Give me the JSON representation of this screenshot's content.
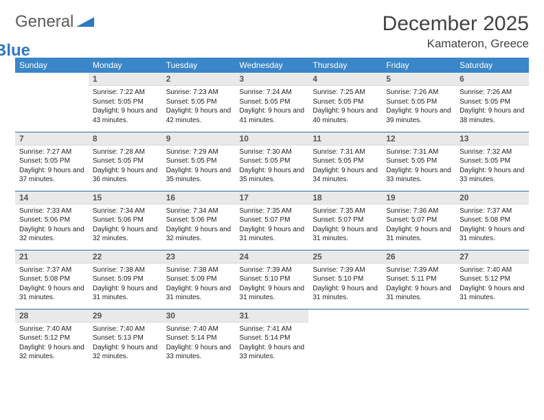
{
  "logo": {
    "text1": "General",
    "text2": "Blue"
  },
  "title": "December 2025",
  "location": "Kamateron, Greece",
  "colors": {
    "header_bg": "#3a86c8",
    "header_text": "#ffffff",
    "row_divider": "#2f6aa5",
    "daybar_bg": "#e9e9e9",
    "logo_accent": "#2f78c2"
  },
  "weekdays": [
    "Sunday",
    "Monday",
    "Tuesday",
    "Wednesday",
    "Thursday",
    "Friday",
    "Saturday"
  ],
  "first_weekday_index": 1,
  "days": [
    {
      "n": 1,
      "sunrise": "7:22 AM",
      "sunset": "5:05 PM",
      "dl": "9 hours and 43 minutes."
    },
    {
      "n": 2,
      "sunrise": "7:23 AM",
      "sunset": "5:05 PM",
      "dl": "9 hours and 42 minutes."
    },
    {
      "n": 3,
      "sunrise": "7:24 AM",
      "sunset": "5:05 PM",
      "dl": "9 hours and 41 minutes."
    },
    {
      "n": 4,
      "sunrise": "7:25 AM",
      "sunset": "5:05 PM",
      "dl": "9 hours and 40 minutes."
    },
    {
      "n": 5,
      "sunrise": "7:26 AM",
      "sunset": "5:05 PM",
      "dl": "9 hours and 39 minutes."
    },
    {
      "n": 6,
      "sunrise": "7:26 AM",
      "sunset": "5:05 PM",
      "dl": "9 hours and 38 minutes."
    },
    {
      "n": 7,
      "sunrise": "7:27 AM",
      "sunset": "5:05 PM",
      "dl": "9 hours and 37 minutes."
    },
    {
      "n": 8,
      "sunrise": "7:28 AM",
      "sunset": "5:05 PM",
      "dl": "9 hours and 36 minutes."
    },
    {
      "n": 9,
      "sunrise": "7:29 AM",
      "sunset": "5:05 PM",
      "dl": "9 hours and 35 minutes."
    },
    {
      "n": 10,
      "sunrise": "7:30 AM",
      "sunset": "5:05 PM",
      "dl": "9 hours and 35 minutes."
    },
    {
      "n": 11,
      "sunrise": "7:31 AM",
      "sunset": "5:05 PM",
      "dl": "9 hours and 34 minutes."
    },
    {
      "n": 12,
      "sunrise": "7:31 AM",
      "sunset": "5:05 PM",
      "dl": "9 hours and 33 minutes."
    },
    {
      "n": 13,
      "sunrise": "7:32 AM",
      "sunset": "5:05 PM",
      "dl": "9 hours and 33 minutes."
    },
    {
      "n": 14,
      "sunrise": "7:33 AM",
      "sunset": "5:06 PM",
      "dl": "9 hours and 32 minutes."
    },
    {
      "n": 15,
      "sunrise": "7:34 AM",
      "sunset": "5:06 PM",
      "dl": "9 hours and 32 minutes."
    },
    {
      "n": 16,
      "sunrise": "7:34 AM",
      "sunset": "5:06 PM",
      "dl": "9 hours and 32 minutes."
    },
    {
      "n": 17,
      "sunrise": "7:35 AM",
      "sunset": "5:07 PM",
      "dl": "9 hours and 31 minutes."
    },
    {
      "n": 18,
      "sunrise": "7:35 AM",
      "sunset": "5:07 PM",
      "dl": "9 hours and 31 minutes."
    },
    {
      "n": 19,
      "sunrise": "7:36 AM",
      "sunset": "5:07 PM",
      "dl": "9 hours and 31 minutes."
    },
    {
      "n": 20,
      "sunrise": "7:37 AM",
      "sunset": "5:08 PM",
      "dl": "9 hours and 31 minutes."
    },
    {
      "n": 21,
      "sunrise": "7:37 AM",
      "sunset": "5:08 PM",
      "dl": "9 hours and 31 minutes."
    },
    {
      "n": 22,
      "sunrise": "7:38 AM",
      "sunset": "5:09 PM",
      "dl": "9 hours and 31 minutes."
    },
    {
      "n": 23,
      "sunrise": "7:38 AM",
      "sunset": "5:09 PM",
      "dl": "9 hours and 31 minutes."
    },
    {
      "n": 24,
      "sunrise": "7:39 AM",
      "sunset": "5:10 PM",
      "dl": "9 hours and 31 minutes."
    },
    {
      "n": 25,
      "sunrise": "7:39 AM",
      "sunset": "5:10 PM",
      "dl": "9 hours and 31 minutes."
    },
    {
      "n": 26,
      "sunrise": "7:39 AM",
      "sunset": "5:11 PM",
      "dl": "9 hours and 31 minutes."
    },
    {
      "n": 27,
      "sunrise": "7:40 AM",
      "sunset": "5:12 PM",
      "dl": "9 hours and 31 minutes."
    },
    {
      "n": 28,
      "sunrise": "7:40 AM",
      "sunset": "5:12 PM",
      "dl": "9 hours and 32 minutes."
    },
    {
      "n": 29,
      "sunrise": "7:40 AM",
      "sunset": "5:13 PM",
      "dl": "9 hours and 32 minutes."
    },
    {
      "n": 30,
      "sunrise": "7:40 AM",
      "sunset": "5:14 PM",
      "dl": "9 hours and 33 minutes."
    },
    {
      "n": 31,
      "sunrise": "7:41 AM",
      "sunset": "5:14 PM",
      "dl": "9 hours and 33 minutes."
    }
  ],
  "labels": {
    "sunrise": "Sunrise:",
    "sunset": "Sunset:",
    "daylight": "Daylight:"
  }
}
